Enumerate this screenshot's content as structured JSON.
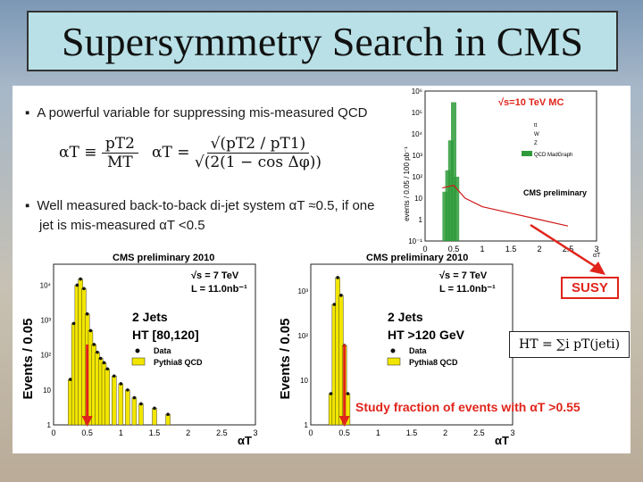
{
  "slide": {
    "title": "Supersymmetry Search in CMS",
    "bullet1": "A powerful variable for suppressing mis-measured QCD",
    "bullet2_line1": "Well measured back-to-back di-jet system αT ≈0.5, if one",
    "bullet2_line2": "jet is mis-measured αT <0.5",
    "formula_alpha": "αT ≡",
    "formula_num": "pT2",
    "formula_den": "MT",
    "formula_alpha2": "αT =",
    "formula_num2": "√(pT2 / pT1)",
    "formula_den2": "√(2(1 − cos Δφ))",
    "susy_label": "SUSY",
    "ht_formula": "HT = ∑i pT(jeti)",
    "study_text": "Study fraction of events with αT >0.55"
  },
  "chart_data": [
    {
      "type": "bar",
      "title": "√s=10 TeV MC",
      "ylabel": "events / 0.05 / 100 pb⁻¹",
      "xlabel": "αT",
      "x_ticks": [
        "0",
        "0.5",
        "1",
        "1.5",
        "2",
        "2.5",
        "3"
      ],
      "y_ticks": [
        "10⁻¹",
        "1",
        "10",
        "10²",
        "10³",
        "10⁴",
        "10⁵",
        "10⁶"
      ],
      "log_y": true,
      "legend": [
        "tt",
        "W",
        "Z",
        "QCD MadGraph"
      ],
      "annotation": "CMS preliminary",
      "colors": {
        "qcd": "#2e9b3a",
        "w": "#d01818",
        "z": "#333333",
        "tt": "#2030c0"
      },
      "series": [
        {
          "name": "QCD MadGraph",
          "x": [
            0.35,
            0.4,
            0.45,
            0.5,
            0.55
          ],
          "values": [
            20,
            200,
            5000,
            300000,
            100
          ]
        },
        {
          "name": "W",
          "x": [
            0.3,
            0.5,
            0.7,
            1.0,
            1.5,
            2.0,
            2.5
          ],
          "values": [
            30,
            40,
            10,
            4,
            2,
            1,
            0.5
          ]
        }
      ]
    },
    {
      "type": "bar",
      "title": "CMS preliminary 2010",
      "ylabel": "Events / 0.05",
      "xlabel": "αT",
      "x_ticks": [
        "0",
        "0.5",
        "1",
        "1.5",
        "2",
        "2.5",
        "3"
      ],
      "y_ticks": [
        "1",
        "10",
        "10²",
        "10³",
        "10⁴"
      ],
      "log_y": true,
      "energy": "√s = 7 TeV",
      "lumi": "L = 11.0nb⁻¹",
      "jets": "2 Jets",
      "ht_cut": "HT [80,120]",
      "legend": [
        "Data",
        "Pythia8 QCD"
      ],
      "hist_x": [
        0.25,
        0.3,
        0.35,
        0.4,
        0.45,
        0.5,
        0.55,
        0.6,
        0.65,
        0.7,
        0.75,
        0.8,
        0.9,
        1.0,
        1.1,
        1.2,
        1.3,
        1.5,
        1.7
      ],
      "hist_y": [
        20,
        800,
        10000,
        15000,
        8000,
        1500,
        500,
        200,
        120,
        80,
        60,
        40,
        25,
        15,
        10,
        6,
        4,
        3,
        2
      ],
      "cut_x": 0.5
    },
    {
      "type": "bar",
      "title": "CMS preliminary 2010",
      "ylabel": "Events / 0.05",
      "xlabel": "αT",
      "x_ticks": [
        "0",
        "0.5",
        "1",
        "1.5",
        "2",
        "2.5",
        "3"
      ],
      "y_ticks": [
        "1",
        "10",
        "10²",
        "10³"
      ],
      "log_y": true,
      "energy": "√s = 7 TeV",
      "lumi": "L = 11.0nb⁻¹",
      "jets": "2 Jets",
      "ht_cut": "HT >120 GeV",
      "legend": [
        "Data",
        "Pythia8 QCD"
      ],
      "hist_x": [
        0.3,
        0.35,
        0.4,
        0.45,
        0.5,
        0.55
      ],
      "hist_y": [
        5,
        500,
        2000,
        800,
        60,
        5
      ],
      "cut_x": 0.5
    }
  ]
}
